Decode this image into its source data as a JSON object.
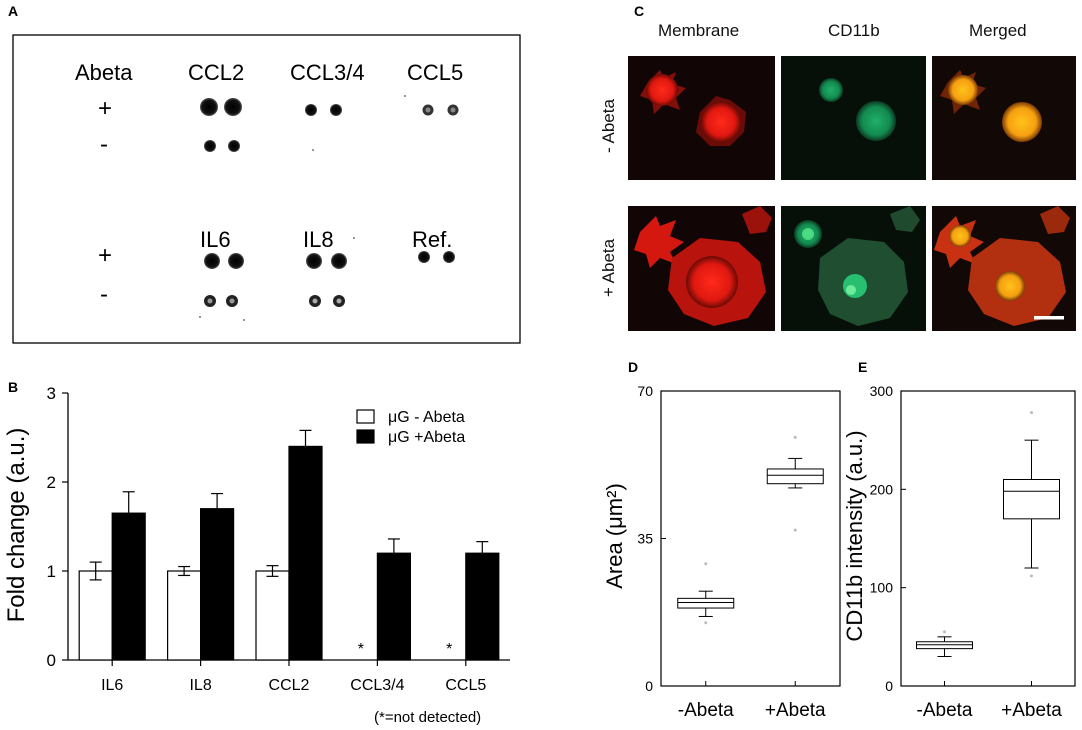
{
  "panel_labels": {
    "a": "A",
    "b": "B",
    "c": "C",
    "d": "D",
    "e": "E"
  },
  "dot_blot": {
    "header_left": "Abeta",
    "row_signs": [
      "+",
      "-",
      "+",
      "-"
    ],
    "top_labels": [
      "CCL2",
      "CCL3/4",
      "CCL5"
    ],
    "bottom_labels": [
      "IL6",
      "IL8",
      "Ref."
    ]
  },
  "micrographs": {
    "column_headers": [
      "Membrane",
      "CD11b",
      "Merged"
    ],
    "row_labels": [
      "- Abeta",
      "+ Abeta"
    ]
  },
  "chart_data": [
    {
      "panel": "B",
      "type": "bar",
      "categories": [
        "IL6",
        "IL8",
        "CCL2",
        "CCL3/4",
        "CCL5"
      ],
      "series": [
        {
          "name": "μG  - Abeta",
          "values": [
            1.0,
            1.0,
            1.0,
            null,
            null
          ],
          "errors": [
            0.1,
            0.05,
            0.06,
            null,
            null
          ],
          "color": "#ffffff"
        },
        {
          "name": "μG  +Abeta",
          "values": [
            1.65,
            1.7,
            2.4,
            1.2,
            1.2
          ],
          "errors": [
            0.24,
            0.17,
            0.18,
            0.16,
            0.13
          ],
          "color": "#000000"
        }
      ],
      "missing_markers": [
        "",
        "",
        "",
        "*",
        "*"
      ],
      "ylabel": "Fold change (a.u.)",
      "ylim": [
        0,
        3
      ],
      "yticks": [
        "0",
        "1",
        "2",
        "3"
      ],
      "footnote": "(*=not detected)",
      "legend_placement": "top-right",
      "grid": false
    },
    {
      "panel": "D",
      "type": "box",
      "categories": [
        "-Abeta",
        "+Abeta"
      ],
      "boxes": [
        {
          "whisker_low": 16.5,
          "q1": 18.5,
          "median": 19.8,
          "q3": 20.8,
          "whisker_high": 22.5,
          "outliers": [
            15,
            29
          ]
        },
        {
          "whisker_low": 47,
          "q1": 48,
          "median": 50,
          "q3": 51.5,
          "whisker_high": 54,
          "outliers": [
            37,
            59
          ]
        }
      ],
      "ylabel": "Area (μm²)",
      "ylim": [
        0,
        70
      ],
      "yticks": [
        "0",
        "35",
        "70"
      ],
      "grid": false
    },
    {
      "panel": "E",
      "type": "box",
      "categories": [
        "-Abeta",
        "+Abeta"
      ],
      "boxes": [
        {
          "whisker_low": 30,
          "q1": 38,
          "median": 42,
          "q3": 45,
          "whisker_high": 50,
          "outliers": [
            55
          ]
        },
        {
          "whisker_low": 120,
          "q1": 170,
          "median": 198,
          "q3": 210,
          "whisker_high": 250,
          "outliers": [
            278,
            112
          ]
        }
      ],
      "ylabel": "CD11b intensity (a.u.)",
      "ylim": [
        0,
        300
      ],
      "yticks": [
        "0",
        "100",
        "200",
        "300"
      ],
      "grid": false
    }
  ]
}
